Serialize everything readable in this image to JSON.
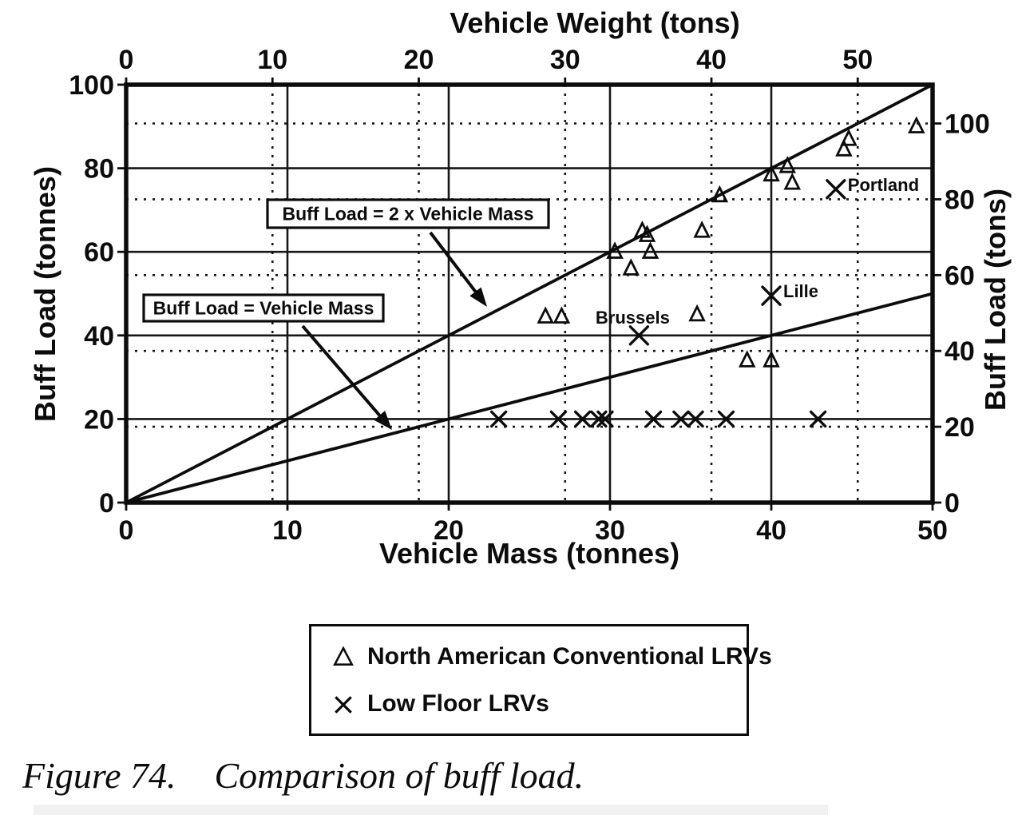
{
  "figure": {
    "caption_label": "Figure 74.",
    "caption_text": "Comparison of buff load."
  },
  "colors": {
    "ink": "#0c0c0c",
    "paper": "#ffffff",
    "scan_bar": "#f1f1f1"
  },
  "chart_data": {
    "type": "scatter",
    "ton_to_tonne": 0.9072,
    "axes": {
      "top": {
        "title": "Vehicle Weight (tons)",
        "unit": "tons",
        "ticks": [
          0,
          10,
          20,
          30,
          40,
          50
        ],
        "range": [
          0,
          55.1
        ],
        "gridline_style": "dotted"
      },
      "bottom": {
        "title": "Vehicle Mass (tonnes)",
        "unit": "tonnes",
        "ticks": [
          0,
          10,
          20,
          30,
          40,
          50
        ],
        "range": [
          0,
          50
        ],
        "gridline_style": "solid"
      },
      "left": {
        "title": "Buff Load (tonnes)",
        "unit": "tonnes",
        "ticks": [
          0,
          20,
          40,
          60,
          80,
          100
        ],
        "range": [
          0,
          100
        ],
        "gridline_style": "solid"
      },
      "right": {
        "title": "Buff Load (tons)",
        "unit": "tons",
        "ticks": [
          0,
          20,
          40,
          60,
          80,
          100
        ],
        "range": [
          0,
          110.2
        ],
        "gridline_style": "dotted"
      }
    },
    "reference_lines": [
      {
        "label": "Buff Load = 2 x Vehicle Mass",
        "slope": 2
      },
      {
        "label": "Buff Load = Vehicle Mass",
        "slope": 1
      }
    ],
    "series": [
      {
        "name": "North American Conventional LRVs",
        "marker": "triangle",
        "points": [
          [
            26,
            44.5
          ],
          [
            27,
            44.5
          ],
          [
            30.3,
            60
          ],
          [
            31.3,
            56
          ],
          [
            32,
            65
          ],
          [
            32.3,
            64
          ],
          [
            32.5,
            60
          ],
          [
            35.4,
            45
          ],
          [
            35.7,
            65
          ],
          [
            36.8,
            73.5
          ],
          [
            38.5,
            34
          ],
          [
            40,
            34
          ],
          [
            40,
            78.5
          ],
          [
            41,
            80.5
          ],
          [
            41.3,
            76.5
          ],
          [
            44.5,
            84.5
          ],
          [
            44.8,
            87
          ],
          [
            49,
            90
          ]
        ]
      },
      {
        "name": "Low Floor LRVs",
        "marker": "x",
        "points": [
          [
            23.1,
            20
          ],
          [
            26.8,
            20
          ],
          [
            28.3,
            20
          ],
          [
            29.3,
            20
          ],
          [
            29.7,
            20
          ],
          [
            32.7,
            20
          ],
          [
            34.4,
            20
          ],
          [
            35.3,
            20
          ],
          [
            37.2,
            20
          ],
          [
            42.9,
            20
          ]
        ],
        "labeled_points": [
          {
            "name": "Brussels",
            "mass": 31.8,
            "buff": 40,
            "label_position": "above"
          },
          {
            "name": "Lille",
            "mass": 40,
            "buff": 49.5,
            "label_position": "right"
          },
          {
            "name": "Portland",
            "mass": 44,
            "buff": 75,
            "label_position": "right"
          }
        ]
      }
    ]
  },
  "legend": {
    "items": [
      {
        "symbol": "triangle"
      },
      {
        "symbol": "x"
      }
    ]
  }
}
